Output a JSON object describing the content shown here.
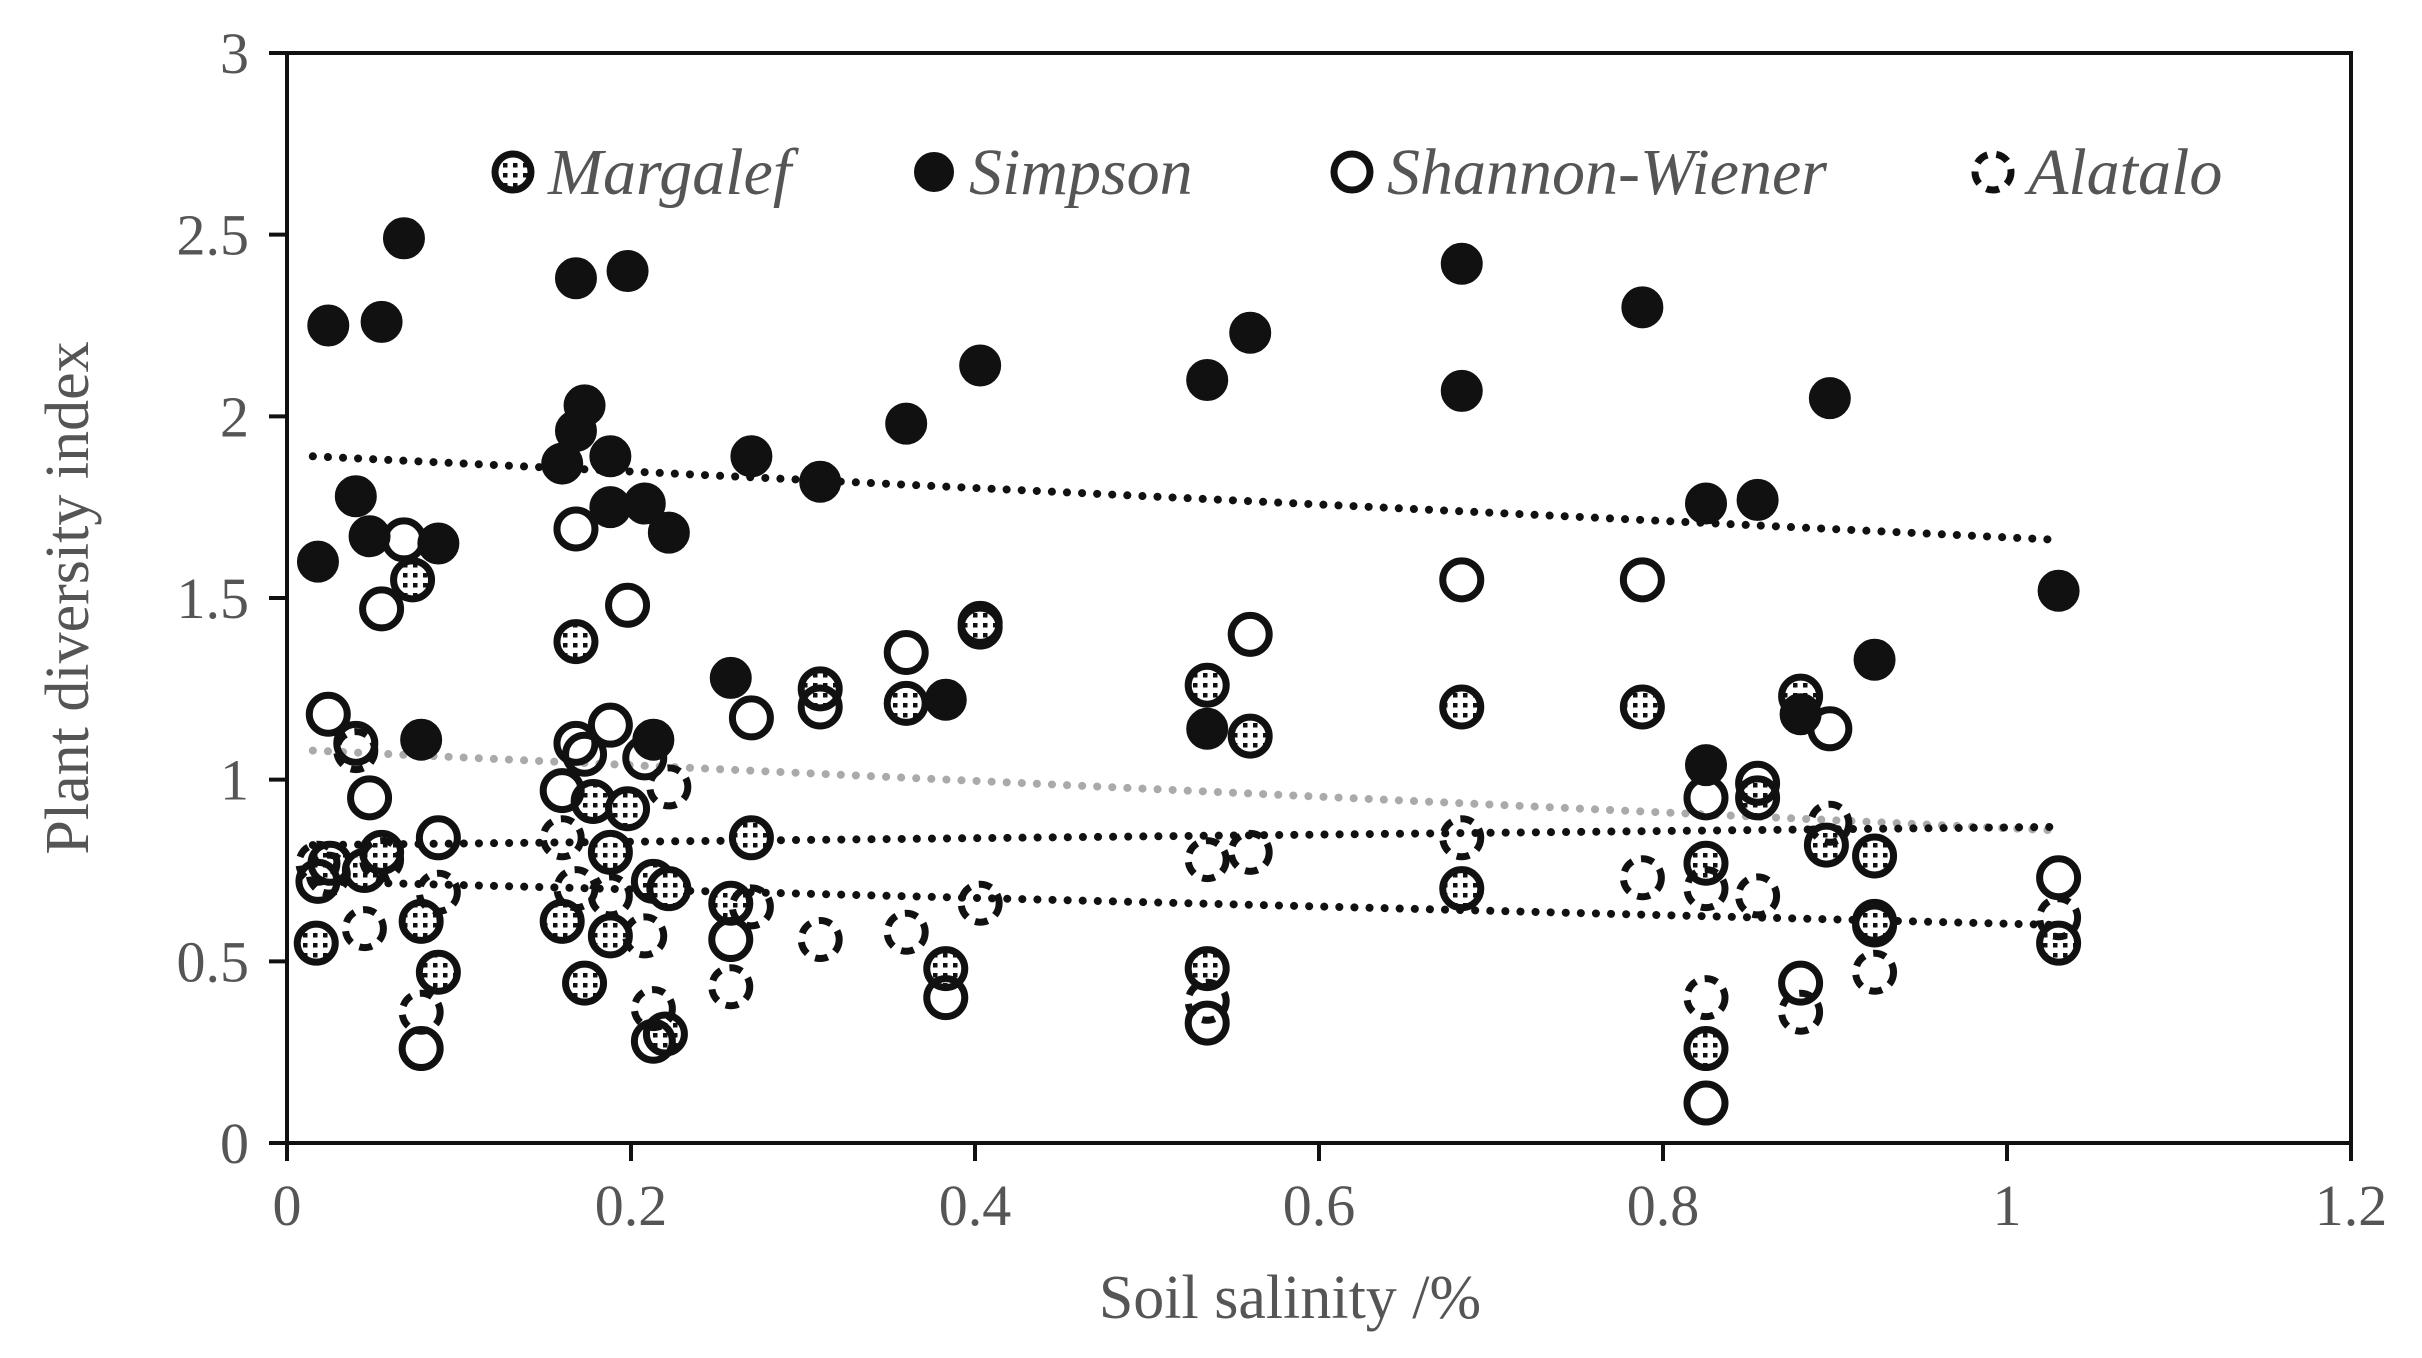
{
  "chart_data": {
    "type": "scatter",
    "title": "",
    "xlabel": "Soil salinity /%",
    "ylabel": "Plant diversity index",
    "xlim": [
      0,
      1.2
    ],
    "ylim": [
      0,
      3
    ],
    "xticks": [
      0,
      0.2,
      0.4,
      0.6,
      0.8,
      1,
      1.2
    ],
    "yticks": [
      0,
      0.5,
      1,
      1.5,
      2,
      2.5,
      3
    ],
    "xtick_labels": [
      "0",
      "0.2",
      "0.4",
      "0.6",
      "0.8",
      "1",
      "1.2"
    ],
    "ytick_labels": [
      "0",
      "0.5",
      "1",
      "1.5",
      "2",
      "2.5",
      "3"
    ],
    "grid": false,
    "legend_position": "top",
    "series": [
      {
        "name": "Margalef",
        "marker": "dotted-circle",
        "points": [
          [
            0.017,
            0.55
          ],
          [
            0.025,
            0.77
          ],
          [
            0.045,
            0.75
          ],
          [
            0.055,
            0.8
          ],
          [
            0.073,
            1.55
          ],
          [
            0.078,
            0.61
          ],
          [
            0.088,
            0.47
          ],
          [
            0.16,
            0.61
          ],
          [
            0.168,
            1.38
          ],
          [
            0.173,
            0.44
          ],
          [
            0.178,
            0.94
          ],
          [
            0.188,
            0.8
          ],
          [
            0.188,
            0.57
          ],
          [
            0.198,
            0.92
          ],
          [
            0.213,
            0.72
          ],
          [
            0.22,
            0.3
          ],
          [
            0.222,
            0.7
          ],
          [
            0.258,
            0.66
          ],
          [
            0.27,
            0.84
          ],
          [
            0.31,
            1.25
          ],
          [
            0.36,
            1.21
          ],
          [
            0.383,
            0.48
          ],
          [
            0.403,
            1.43
          ],
          [
            0.535,
            1.26
          ],
          [
            0.535,
            0.48
          ],
          [
            0.56,
            1.12
          ],
          [
            0.683,
            1.2
          ],
          [
            0.683,
            0.7
          ],
          [
            0.788,
            1.2
          ],
          [
            0.825,
            0.77
          ],
          [
            0.825,
            0.26
          ],
          [
            0.855,
            0.95
          ],
          [
            0.88,
            1.23
          ],
          [
            0.895,
            0.82
          ],
          [
            0.923,
            0.79
          ],
          [
            0.923,
            0.61
          ],
          [
            1.03,
            0.55
          ]
        ]
      },
      {
        "name": "Simpson",
        "marker": "filled-circle",
        "points": [
          [
            0.018,
            1.6
          ],
          [
            0.024,
            2.25
          ],
          [
            0.04,
            1.78
          ],
          [
            0.048,
            1.67
          ],
          [
            0.055,
            2.26
          ],
          [
            0.068,
            2.49
          ],
          [
            0.078,
            1.11
          ],
          [
            0.088,
            1.65
          ],
          [
            0.16,
            1.87
          ],
          [
            0.168,
            1.96
          ],
          [
            0.168,
            2.38
          ],
          [
            0.173,
            2.03
          ],
          [
            0.188,
            1.89
          ],
          [
            0.188,
            1.75
          ],
          [
            0.198,
            2.4
          ],
          [
            0.208,
            1.76
          ],
          [
            0.213,
            1.11
          ],
          [
            0.222,
            1.68
          ],
          [
            0.258,
            1.28
          ],
          [
            0.27,
            1.89
          ],
          [
            0.31,
            1.82
          ],
          [
            0.36,
            1.98
          ],
          [
            0.383,
            1.22
          ],
          [
            0.403,
            2.14
          ],
          [
            0.535,
            2.1
          ],
          [
            0.535,
            1.14
          ],
          [
            0.56,
            2.23
          ],
          [
            0.683,
            2.42
          ],
          [
            0.683,
            2.07
          ],
          [
            0.788,
            2.3
          ],
          [
            0.825,
            1.76
          ],
          [
            0.825,
            1.04
          ],
          [
            0.855,
            1.77
          ],
          [
            0.88,
            1.18
          ],
          [
            0.897,
            2.05
          ],
          [
            0.923,
            1.33
          ],
          [
            1.03,
            1.52
          ]
        ]
      },
      {
        "name": "Shannon-Wiener",
        "marker": "open-circle",
        "points": [
          [
            0.018,
            0.72
          ],
          [
            0.024,
            1.18
          ],
          [
            0.04,
            1.1
          ],
          [
            0.048,
            0.95
          ],
          [
            0.055,
            1.47
          ],
          [
            0.068,
            1.66
          ],
          [
            0.078,
            0.26
          ],
          [
            0.088,
            0.84
          ],
          [
            0.16,
            0.97
          ],
          [
            0.168,
            1.69
          ],
          [
            0.168,
            1.1
          ],
          [
            0.173,
            1.07
          ],
          [
            0.188,
            1.15
          ],
          [
            0.198,
            1.48
          ],
          [
            0.208,
            1.06
          ],
          [
            0.213,
            0.28
          ],
          [
            0.258,
            0.56
          ],
          [
            0.27,
            1.17
          ],
          [
            0.31,
            1.2
          ],
          [
            0.36,
            1.35
          ],
          [
            0.383,
            0.4
          ],
          [
            0.403,
            1.42
          ],
          [
            0.535,
            0.33
          ],
          [
            0.56,
            1.4
          ],
          [
            0.683,
            1.55
          ],
          [
            0.788,
            1.55
          ],
          [
            0.825,
            0.95
          ],
          [
            0.825,
            0.11
          ],
          [
            0.855,
            0.99
          ],
          [
            0.88,
            0.44
          ],
          [
            0.897,
            1.14
          ],
          [
            0.923,
            0.6
          ],
          [
            1.03,
            0.73
          ]
        ]
      },
      {
        "name": "Alatalo",
        "marker": "dashed-circle",
        "points": [
          [
            0.018,
            0.77
          ],
          [
            0.024,
            0.74
          ],
          [
            0.04,
            1.08
          ],
          [
            0.045,
            0.59
          ],
          [
            0.055,
            0.78
          ],
          [
            0.078,
            0.36
          ],
          [
            0.088,
            0.69
          ],
          [
            0.16,
            0.84
          ],
          [
            0.168,
            0.7
          ],
          [
            0.188,
            0.68
          ],
          [
            0.208,
            0.57
          ],
          [
            0.213,
            0.37
          ],
          [
            0.222,
            0.98
          ],
          [
            0.258,
            0.43
          ],
          [
            0.27,
            0.65
          ],
          [
            0.31,
            0.56
          ],
          [
            0.36,
            0.58
          ],
          [
            0.403,
            0.66
          ],
          [
            0.535,
            0.78
          ],
          [
            0.535,
            0.39
          ],
          [
            0.56,
            0.8
          ],
          [
            0.683,
            0.84
          ],
          [
            0.788,
            0.73
          ],
          [
            0.825,
            0.7
          ],
          [
            0.825,
            0.4
          ],
          [
            0.855,
            0.68
          ],
          [
            0.88,
            0.36
          ],
          [
            0.897,
            0.88
          ],
          [
            0.923,
            0.47
          ],
          [
            1.03,
            0.62
          ]
        ]
      }
    ],
    "trendlines": [
      {
        "name": "Simpson trend",
        "color": "#111111",
        "x": [
          0.015,
          1.03
        ],
        "y": [
          1.89,
          1.66
        ]
      },
      {
        "name": "Shannon-Wiener trend",
        "color": "#aaaaaa",
        "x": [
          0.015,
          1.03
        ],
        "y": [
          1.08,
          0.86
        ]
      },
      {
        "name": "Margalef trend",
        "color": "#111111",
        "x": [
          0.015,
          1.03
        ],
        "y": [
          0.82,
          0.87
        ]
      },
      {
        "name": "Alatalo trend",
        "color": "#111111",
        "x": [
          0.015,
          1.03
        ],
        "y": [
          0.72,
          0.6
        ]
      }
    ],
    "colors": {
      "ink": "#111111",
      "axis_text": "#555555",
      "light_trend": "#aaaaaa"
    }
  }
}
